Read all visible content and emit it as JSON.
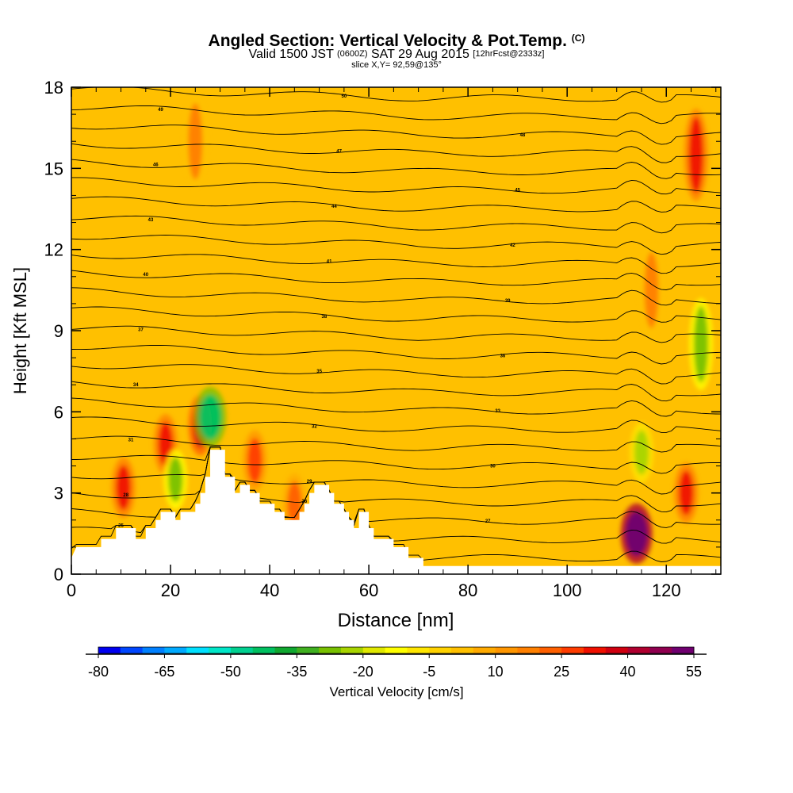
{
  "header": {
    "title_main": "Angled Section: Vertical Velocity & Pot.Temp.",
    "title_unit": "(C)",
    "valid_a": "Valid 1500 JST",
    "valid_b": "(0600Z)",
    "valid_c": "SAT 29 Aug 2015",
    "valid_d": "[12hrFcst@2333z]",
    "slice": "slice X,Y= 92,59@135°"
  },
  "chart_data": {
    "type": "heatmap",
    "xlabel": "Distance [nm]",
    "ylabel": "Height [Kft MSL]",
    "xlim": [
      0,
      131
    ],
    "ylim": [
      0,
      18
    ],
    "x_ticks": [
      "0",
      "20",
      "40",
      "60",
      "80",
      "100",
      "120"
    ],
    "y_ticks": [
      "0",
      "3",
      "6",
      "9",
      "12",
      "15",
      "18"
    ],
    "terrain_kft": [
      [
        0,
        0.6
      ],
      [
        1,
        1.0
      ],
      [
        6,
        1.0
      ],
      [
        6,
        1.3
      ],
      [
        9,
        1.3
      ],
      [
        9,
        1.7
      ],
      [
        13,
        1.7
      ],
      [
        13,
        1.3
      ],
      [
        15,
        1.3
      ],
      [
        15,
        1.7
      ],
      [
        17,
        1.7
      ],
      [
        17,
        2.0
      ],
      [
        18,
        2.0
      ],
      [
        18,
        2.3
      ],
      [
        21,
        2.3
      ],
      [
        21,
        2.0
      ],
      [
        22,
        2.0
      ],
      [
        22,
        2.3
      ],
      [
        25,
        2.3
      ],
      [
        25,
        2.6
      ],
      [
        26,
        2.6
      ],
      [
        26,
        3.0
      ],
      [
        27,
        3.0
      ],
      [
        27,
        3.6
      ],
      [
        28,
        3.6
      ],
      [
        28,
        4.6
      ],
      [
        31,
        4.6
      ],
      [
        31,
        3.6
      ],
      [
        33,
        3.6
      ],
      [
        33,
        3.0
      ],
      [
        34,
        3.0
      ],
      [
        34,
        3.3
      ],
      [
        36,
        3.3
      ],
      [
        36,
        3.0
      ],
      [
        38,
        3.0
      ],
      [
        38,
        2.6
      ],
      [
        41,
        2.6
      ],
      [
        41,
        2.3
      ],
      [
        43,
        2.3
      ],
      [
        43,
        2.0
      ],
      [
        46,
        2.0
      ],
      [
        46,
        2.3
      ],
      [
        47,
        2.3
      ],
      [
        47,
        2.6
      ],
      [
        48,
        2.6
      ],
      [
        48,
        3.0
      ],
      [
        49,
        3.0
      ],
      [
        49,
        3.3
      ],
      [
        52,
        3.3
      ],
      [
        52,
        3.0
      ],
      [
        53,
        3.0
      ],
      [
        53,
        2.6
      ],
      [
        55,
        2.6
      ],
      [
        55,
        2.3
      ],
      [
        56,
        2.3
      ],
      [
        56,
        2.0
      ],
      [
        57,
        2.0
      ],
      [
        57,
        1.7
      ],
      [
        58,
        1.7
      ],
      [
        58,
        2.3
      ],
      [
        60,
        2.3
      ],
      [
        60,
        1.7
      ],
      [
        61,
        1.7
      ],
      [
        61,
        1.3
      ],
      [
        65,
        1.3
      ],
      [
        65,
        1.0
      ],
      [
        68,
        1.0
      ],
      [
        68,
        0.6
      ],
      [
        71,
        0.6
      ],
      [
        71,
        0.3
      ],
      [
        131,
        0.3
      ]
    ],
    "theta_isolines_values": [
      25,
      26,
      27,
      28,
      29,
      30,
      31,
      32,
      33,
      34,
      35,
      36,
      37,
      38,
      39,
      40,
      41,
      42,
      43,
      44,
      45,
      46,
      47,
      48,
      49,
      50
    ],
    "colorbar": {
      "label": "Vertical Velocity [cm/s]",
      "ticks": [
        "-80",
        "-65",
        "-50",
        "-35",
        "-20",
        "-5",
        "10",
        "25",
        "40",
        "55"
      ],
      "colors": [
        "#0000f0",
        "#0046ff",
        "#0080ff",
        "#00aaff",
        "#00e0ff",
        "#00e6c8",
        "#00d090",
        "#00c060",
        "#10a830",
        "#40b020",
        "#78c000",
        "#a8d400",
        "#e0e800",
        "#ffff00",
        "#ffe600",
        "#ffd200",
        "#ffc000",
        "#ffaa00",
        "#ff9600",
        "#ff8000",
        "#ff6000",
        "#ff3c00",
        "#f01000",
        "#d00010",
        "#b00030",
        "#900050",
        "#700070"
      ]
    },
    "velocity_features": [
      {
        "x": 10.5,
        "y": 3.2,
        "value": 30
      },
      {
        "x": 19,
        "y": 4.8,
        "value": 30
      },
      {
        "x": 21,
        "y": 3.5,
        "value": -30
      },
      {
        "x": 26,
        "y": 5.5,
        "value": 35
      },
      {
        "x": 28,
        "y": 5.8,
        "value": -45
      },
      {
        "x": 37,
        "y": 4.2,
        "value": 25
      },
      {
        "x": 45,
        "y": 2.6,
        "value": 20
      },
      {
        "x": 25,
        "y": 16,
        "value": 15
      },
      {
        "x": 114,
        "y": 1.5,
        "value": 55
      },
      {
        "x": 115,
        "y": 4.5,
        "value": -25
      },
      {
        "x": 124,
        "y": 3.0,
        "value": 30
      },
      {
        "x": 127,
        "y": 8.5,
        "value": -30
      },
      {
        "x": 126,
        "y": 15.5,
        "value": 30
      },
      {
        "x": 117,
        "y": 10.5,
        "value": 15
      }
    ]
  }
}
